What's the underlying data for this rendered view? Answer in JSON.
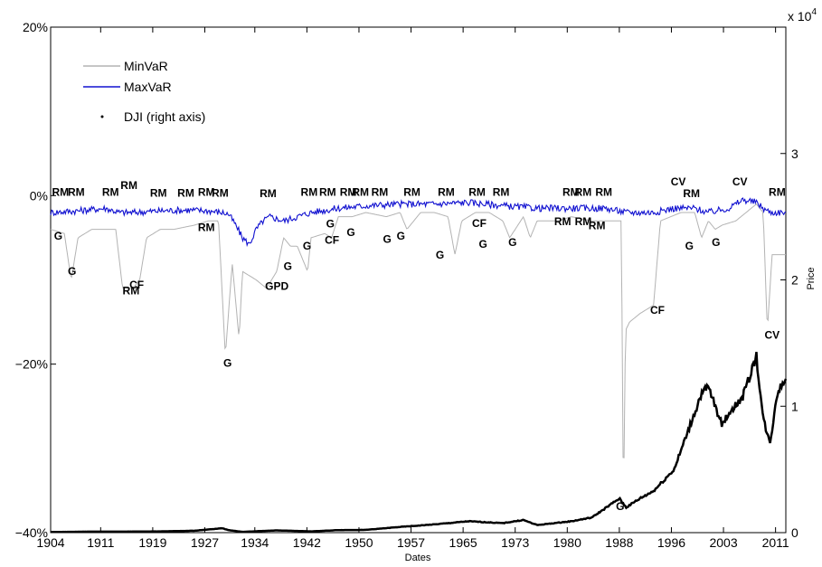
{
  "chart_data": {
    "type": "line",
    "xlabel": "Dates",
    "ylabel_right": "Price",
    "right_exponent_label": "x 10",
    "right_exponent_power": "4",
    "x_range": [
      1904,
      2011.3
    ],
    "x_tick_labels": [
      "1904",
      "1911",
      "1919",
      "1927",
      "1934",
      "1942",
      "1950",
      "1957",
      "1965",
      "1973",
      "1980",
      "1988",
      "1996",
      "2003",
      "2011"
    ],
    "x_tick_years": [
      1904,
      1911.3,
      1918.9,
      1926.5,
      1933.8,
      1941.4,
      1949.0,
      1956.6,
      1964.2,
      1971.8,
      1979.4,
      1987.0,
      1994.6,
      2002.2,
      2009.8
    ],
    "y_left_range": [
      -0.4,
      0.2
    ],
    "y_left_ticks": [
      -0.4,
      -0.2,
      0.0,
      0.2
    ],
    "y_left_tick_labels": [
      "−40%",
      "−20%",
      "0%",
      "20%"
    ],
    "y_right_range": [
      0,
      4
    ],
    "y_right_ticks": [
      0,
      1,
      2,
      3
    ],
    "y_right_tick_labels": [
      "0",
      "1",
      "2",
      "3"
    ],
    "grid": false,
    "legend_position": "top-left",
    "colors": {
      "minvar": "#b3b3b3",
      "maxvar": "#1010d0",
      "dji": "#000000"
    },
    "series": [
      {
        "name": "MinVaR",
        "axis": "left",
        "points": [
          [
            1904,
            -0.04
          ],
          [
            1906,
            -0.045
          ],
          [
            1907,
            -0.1
          ],
          [
            1908,
            -0.05
          ],
          [
            1910,
            -0.04
          ],
          [
            1912,
            -0.04
          ],
          [
            1913.5,
            -0.04
          ],
          [
            1914.5,
            -0.11
          ],
          [
            1916,
            -0.11
          ],
          [
            1917,
            -0.1
          ],
          [
            1918,
            -0.05
          ],
          [
            1920,
            -0.04
          ],
          [
            1922,
            -0.04
          ],
          [
            1925,
            -0.035
          ],
          [
            1927,
            -0.03
          ],
          [
            1928.5,
            -0.03
          ],
          [
            1929.5,
            -0.19
          ],
          [
            1930.5,
            -0.08
          ],
          [
            1931.5,
            -0.17
          ],
          [
            1932,
            -0.09
          ],
          [
            1934,
            -0.1
          ],
          [
            1935.5,
            -0.11
          ],
          [
            1937,
            -0.09
          ],
          [
            1938,
            -0.05
          ],
          [
            1939,
            -0.06
          ],
          [
            1940,
            -0.06
          ],
          [
            1941.5,
            -0.09
          ],
          [
            1942,
            -0.05
          ],
          [
            1944,
            -0.045
          ],
          [
            1945,
            -0.05
          ],
          [
            1946,
            -0.025
          ],
          [
            1948,
            -0.025
          ],
          [
            1950,
            -0.02
          ],
          [
            1953,
            -0.025
          ],
          [
            1955,
            -0.02
          ],
          [
            1956,
            -0.04
          ],
          [
            1958,
            -0.02
          ],
          [
            1960,
            -0.02
          ],
          [
            1962,
            -0.025
          ],
          [
            1963,
            -0.07
          ],
          [
            1964,
            -0.03
          ],
          [
            1966,
            -0.02
          ],
          [
            1968,
            -0.02
          ],
          [
            1970,
            -0.03
          ],
          [
            1971,
            -0.05
          ],
          [
            1973,
            -0.025
          ],
          [
            1974,
            -0.05
          ],
          [
            1975,
            -0.03
          ],
          [
            1978,
            -0.03
          ],
          [
            1980,
            -0.025
          ],
          [
            1983,
            -0.03
          ],
          [
            1986,
            -0.03
          ],
          [
            1987.3,
            -0.03
          ],
          [
            1987.6,
            -0.38
          ],
          [
            1987.9,
            -0.16
          ],
          [
            1988.5,
            -0.15
          ],
          [
            1990,
            -0.14
          ],
          [
            1992,
            -0.13
          ],
          [
            1993,
            -0.03
          ],
          [
            1996,
            -0.02
          ],
          [
            1998,
            -0.02
          ],
          [
            1999,
            -0.05
          ],
          [
            2000,
            -0.03
          ],
          [
            2001,
            -0.04
          ],
          [
            2002,
            -0.035
          ],
          [
            2004,
            -0.03
          ],
          [
            2007,
            -0.01
          ],
          [
            2008,
            -0.02
          ],
          [
            2008.6,
            -0.16
          ],
          [
            2009.3,
            -0.07
          ],
          [
            2011.3,
            -0.07
          ]
        ]
      },
      {
        "name": "MaxVaR",
        "axis": "left",
        "points": [
          [
            1904,
            -0.02
          ],
          [
            1908,
            -0.018
          ],
          [
            1912,
            -0.015
          ],
          [
            1914,
            -0.02
          ],
          [
            1916,
            -0.02
          ],
          [
            1920,
            -0.018
          ],
          [
            1924,
            -0.017
          ],
          [
            1927,
            -0.018
          ],
          [
            1929,
            -0.02
          ],
          [
            1930,
            -0.022
          ],
          [
            1931,
            -0.035
          ],
          [
            1932,
            -0.05
          ],
          [
            1933,
            -0.058
          ],
          [
            1934,
            -0.04
          ],
          [
            1935,
            -0.03
          ],
          [
            1936,
            -0.025
          ],
          [
            1938,
            -0.03
          ],
          [
            1940,
            -0.025
          ],
          [
            1942,
            -0.02
          ],
          [
            1946,
            -0.015
          ],
          [
            1950,
            -0.012
          ],
          [
            1955,
            -0.01
          ],
          [
            1960,
            -0.01
          ],
          [
            1965,
            -0.008
          ],
          [
            1970,
            -0.012
          ],
          [
            1975,
            -0.015
          ],
          [
            1980,
            -0.015
          ],
          [
            1985,
            -0.015
          ],
          [
            1988,
            -0.02
          ],
          [
            1992,
            -0.02
          ],
          [
            1995,
            -0.015
          ],
          [
            1998,
            -0.015
          ],
          [
            2000,
            -0.02
          ],
          [
            2003,
            -0.015
          ],
          [
            2005,
            -0.005
          ],
          [
            2007,
            -0.008
          ],
          [
            2008,
            -0.015
          ],
          [
            2009,
            -0.02
          ],
          [
            2011.3,
            -0.02
          ]
        ]
      },
      {
        "name": "DJI (right axis)",
        "axis": "right",
        "points": [
          [
            1904,
            0.005
          ],
          [
            1910,
            0.008
          ],
          [
            1915,
            0.008
          ],
          [
            1920,
            0.01
          ],
          [
            1925,
            0.015
          ],
          [
            1929,
            0.035
          ],
          [
            1930,
            0.02
          ],
          [
            1932,
            0.006
          ],
          [
            1937,
            0.018
          ],
          [
            1942,
            0.01
          ],
          [
            1946,
            0.02
          ],
          [
            1950,
            0.022
          ],
          [
            1955,
            0.045
          ],
          [
            1960,
            0.065
          ],
          [
            1965,
            0.09
          ],
          [
            1970,
            0.075
          ],
          [
            1973,
            0.1
          ],
          [
            1975,
            0.06
          ],
          [
            1980,
            0.09
          ],
          [
            1983,
            0.12
          ],
          [
            1987,
            0.27
          ],
          [
            1988,
            0.2
          ],
          [
            1990,
            0.27
          ],
          [
            1992,
            0.33
          ],
          [
            1995,
            0.5
          ],
          [
            1997,
            0.8
          ],
          [
            1999,
            1.1
          ],
          [
            2000,
            1.15
          ],
          [
            2001,
            1.0
          ],
          [
            2002,
            0.85
          ],
          [
            2003,
            0.95
          ],
          [
            2005,
            1.07
          ],
          [
            2007,
            1.4
          ],
          [
            2008,
            0.9
          ],
          [
            2009,
            0.7
          ],
          [
            2010,
            1.1
          ],
          [
            2011,
            1.2
          ]
        ]
      }
    ],
    "annotations": [
      {
        "text": "RM",
        "x": 1904.2,
        "y": 0.0
      },
      {
        "text": "RM",
        "x": 1906.5,
        "y": 0.0
      },
      {
        "text": "RM",
        "x": 1911.5,
        "y": 0.0
      },
      {
        "text": "RM",
        "x": 1914.2,
        "y": 0.008
      },
      {
        "text": "RM",
        "x": 1918.5,
        "y": -0.001
      },
      {
        "text": "RM",
        "x": 1922.5,
        "y": -0.001
      },
      {
        "text": "RM",
        "x": 1925.5,
        "y": 0.0
      },
      {
        "text": "RM",
        "x": 1927.5,
        "y": -0.001
      },
      {
        "text": "RM",
        "x": 1934.5,
        "y": -0.002
      },
      {
        "text": "RM",
        "x": 1940.5,
        "y": 0.0
      },
      {
        "text": "RM",
        "x": 1943.2,
        "y": 0.0
      },
      {
        "text": "RM",
        "x": 1946.2,
        "y": 0.0
      },
      {
        "text": "RM",
        "x": 1948,
        "y": 0.0
      },
      {
        "text": "RM",
        "x": 1950.8,
        "y": 0.0
      },
      {
        "text": "RM",
        "x": 1955.5,
        "y": 0.0
      },
      {
        "text": "RM",
        "x": 1960.5,
        "y": 0.0
      },
      {
        "text": "RM",
        "x": 1965,
        "y": 0.0
      },
      {
        "text": "RM",
        "x": 1968.5,
        "y": 0.0
      },
      {
        "text": "RM",
        "x": 1978.7,
        "y": 0.0
      },
      {
        "text": "RM",
        "x": 1980.5,
        "y": 0.0
      },
      {
        "text": "RM",
        "x": 1983.5,
        "y": 0.0
      },
      {
        "text": "RM",
        "x": 1996.3,
        "y": -0.002
      },
      {
        "text": "RM",
        "x": 2008.8,
        "y": 0.0
      },
      {
        "text": "RM",
        "x": 1925.5,
        "y": -0.042
      },
      {
        "text": "RM",
        "x": 1977.5,
        "y": -0.035
      },
      {
        "text": "RM",
        "x": 1980.5,
        "y": -0.035
      },
      {
        "text": "RM",
        "x": 1982.5,
        "y": -0.04
      },
      {
        "text": "RM",
        "x": 1914.5,
        "y": -0.117
      },
      {
        "text": "G",
        "x": 1904.5,
        "y": -0.052
      },
      {
        "text": "G",
        "x": 1906.5,
        "y": -0.094
      },
      {
        "text": "G",
        "x": 1929.2,
        "y": -0.203
      },
      {
        "text": "G",
        "x": 1938,
        "y": -0.088
      },
      {
        "text": "G",
        "x": 1940.8,
        "y": -0.064
      },
      {
        "text": "G",
        "x": 1944.2,
        "y": -0.038
      },
      {
        "text": "G",
        "x": 1947.2,
        "y": -0.048
      },
      {
        "text": "G",
        "x": 1952.5,
        "y": -0.056
      },
      {
        "text": "G",
        "x": 1954.5,
        "y": -0.052
      },
      {
        "text": "G",
        "x": 1960.2,
        "y": -0.075
      },
      {
        "text": "G",
        "x": 1966.5,
        "y": -0.062
      },
      {
        "text": "G",
        "x": 1970.8,
        "y": -0.06
      },
      {
        "text": "G",
        "x": 1986.5,
        "y": -0.373
      },
      {
        "text": "G",
        "x": 1996.6,
        "y": -0.064
      },
      {
        "text": "G",
        "x": 2000.5,
        "y": -0.06
      },
      {
        "text": "CF",
        "x": 1915.5,
        "y": -0.11
      },
      {
        "text": "CF",
        "x": 1944,
        "y": -0.057
      },
      {
        "text": "CF",
        "x": 1965.5,
        "y": -0.037
      },
      {
        "text": "CF",
        "x": 1991.5,
        "y": -0.14
      },
      {
        "text": "CV",
        "x": 1994.5,
        "y": 0.012
      },
      {
        "text": "CV",
        "x": 2003.5,
        "y": 0.012
      },
      {
        "text": "CV",
        "x": 2008.2,
        "y": -0.17
      },
      {
        "text": "GPD",
        "x": 1935.3,
        "y": -0.112
      }
    ],
    "legend": [
      {
        "label": "MinVaR"
      },
      {
        "label": "MaxVaR"
      },
      {
        "label": "DJI (right axis)"
      }
    ]
  }
}
